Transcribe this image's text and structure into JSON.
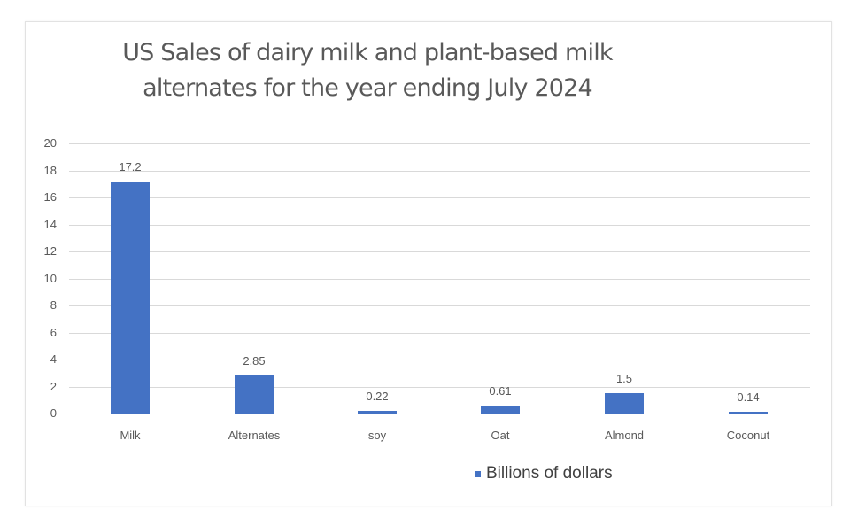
{
  "chart_data": {
    "type": "bar",
    "title": "US Sales of dairy milk and plant-based milk alternates for the year ending July 2024",
    "title_lines": [
      "US Sales of dairy milk and plant-based milk",
      "alternates for the year ending July 2024"
    ],
    "categories": [
      "Milk",
      "Alternates",
      "soy",
      "Oat",
      "Almond",
      "Coconut"
    ],
    "series": [
      {
        "name": "Billions of dollars",
        "values": [
          17.2,
          2.85,
          0.22,
          0.61,
          1.5,
          0.14
        ],
        "color": "#4472c4"
      }
    ],
    "data_labels": [
      "17.2",
      "2.85",
      "0.22",
      "0.61",
      "1.5",
      "0.14"
    ],
    "xlabel": "",
    "ylabel": "",
    "ylim": [
      0,
      20
    ],
    "yticks": [
      "0",
      "2",
      "4",
      "6",
      "8",
      "10",
      "12",
      "14",
      "16",
      "18",
      "20"
    ],
    "grid": true,
    "legend_position": "bottom"
  },
  "legend": {
    "label": "Billions of dollars"
  }
}
